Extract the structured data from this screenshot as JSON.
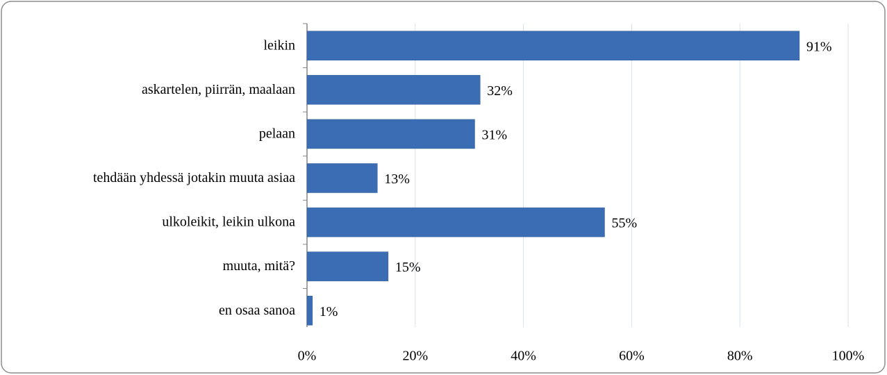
{
  "chart_data": {
    "type": "hbar",
    "categories": [
      "leikin",
      "askartelen, piirrän, maalaan",
      "pelaan",
      "tehdään yhdessä jotakin muuta asiaa",
      "ulkoleikit, leikin ulkona",
      "muuta, mitä?",
      "en osaa sanoa"
    ],
    "values": [
      91,
      32,
      31,
      13,
      55,
      15,
      1
    ],
    "value_labels": [
      "91%",
      "32%",
      "31%",
      "13%",
      "55%",
      "15%",
      "1%"
    ],
    "color": "#3b6db4",
    "xlim": [
      0,
      100
    ],
    "xticks": [
      {
        "value": 0,
        "label": "0%"
      },
      {
        "value": 20,
        "label": "20%"
      },
      {
        "value": 40,
        "label": "40%"
      },
      {
        "value": 60,
        "label": "60%"
      },
      {
        "value": 80,
        "label": "80%"
      },
      {
        "value": 100,
        "label": "100%"
      }
    ],
    "grid": true
  }
}
